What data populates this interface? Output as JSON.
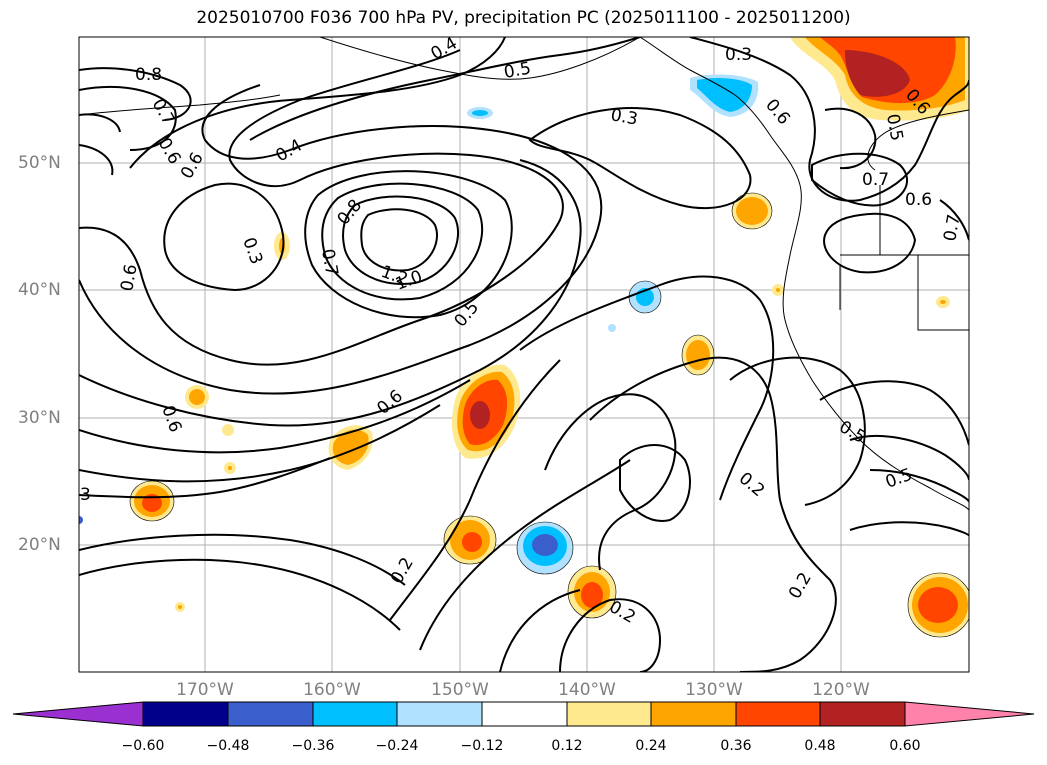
{
  "title": "2025010700 F036 700 hPa PV, precipitation PC (2025011100 - 2025011200)",
  "lat_labels": [
    "50°N",
    "40°N",
    "30°N",
    "20°N"
  ],
  "lon_labels": [
    "170°W",
    "160°W",
    "150°W",
    "140°W",
    "130°W",
    "120°W"
  ],
  "colorbar": {
    "ticks": [
      "−0.60",
      "−0.48",
      "−0.36",
      "−0.24",
      "−0.12",
      "0.12",
      "0.24",
      "0.36",
      "0.48",
      "0.60"
    ],
    "colors": [
      "#9b30d0",
      "#00008b",
      "#3a5fcd",
      "#00bfff",
      "#b0e2ff",
      "#ffffff",
      "#ffe98f",
      "#ffa500",
      "#ff4500",
      "#b22222",
      "#ff82ab"
    ]
  },
  "contour_labels": [
    "0.8",
    "0.7",
    "0.6",
    "0.4",
    "0.5",
    "0.3",
    "0.4",
    "0.6",
    "0.5",
    "0.7",
    "0.6",
    "0.7",
    "0.3",
    "0.8",
    "1.2",
    "1.0",
    "0.7",
    "0.6",
    "0.5",
    "0.6",
    "0.6",
    "3",
    "0.2",
    "0.2",
    "0.2",
    "0.2",
    "0.5",
    "0.5",
    "0.3",
    "0.6",
    "0.6"
  ]
}
